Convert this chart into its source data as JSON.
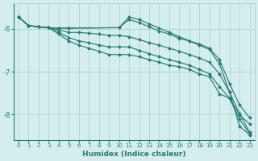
{
  "background_color": "#d4eeee",
  "grid_color": "#b0d4d4",
  "line_color": "#2a7a70",
  "xlabel": "Humidex (Indice chaleur)",
  "xlim": [
    -0.5,
    23.5
  ],
  "ylim": [
    -8.6,
    -5.4
  ],
  "yticks": [
    -8,
    -7,
    -6
  ],
  "xticks": [
    0,
    1,
    2,
    3,
    4,
    5,
    6,
    7,
    8,
    9,
    10,
    11,
    12,
    13,
    14,
    15,
    16,
    17,
    18,
    19,
    20,
    21,
    22,
    23
  ],
  "series": [
    {
      "x": [
        0,
        1,
        2,
        3,
        4,
        5,
        10,
        11,
        12,
        13,
        14,
        15,
        16,
        17,
        18,
        19,
        20,
        21,
        22,
        23
      ],
      "y": [
        -5.72,
        -5.92,
        -5.95,
        -5.97,
        -5.98,
        -5.98,
        -5.97,
        -5.78,
        -5.85,
        -5.95,
        -6.05,
        -6.12,
        -6.22,
        -6.28,
        -6.35,
        -6.45,
        -6.72,
        -7.28,
        -7.78,
        -8.08
      ]
    },
    {
      "x": [
        0,
        1,
        2,
        3,
        4,
        5,
        6,
        7,
        8,
        9,
        10,
        11,
        12,
        13,
        14,
        15,
        16,
        17,
        18,
        19,
        20,
        21,
        22,
        23
      ],
      "y": [
        -5.72,
        -5.92,
        -5.95,
        -5.97,
        -6.02,
        -6.08,
        -6.08,
        -6.1,
        -6.12,
        -6.15,
        -6.15,
        -6.18,
        -6.25,
        -6.32,
        -6.38,
        -6.45,
        -6.52,
        -6.6,
        -6.68,
        -6.78,
        -7.05,
        -7.48,
        -7.98,
        -8.42
      ]
    },
    {
      "x": [
        0,
        1,
        2,
        3,
        4,
        5,
        6,
        7,
        8,
        9,
        10,
        11,
        12,
        13,
        14,
        15,
        16,
        17,
        18,
        19,
        20,
        21,
        22,
        23
      ],
      "y": [
        -5.72,
        -5.92,
        -5.95,
        -5.97,
        -6.08,
        -6.2,
        -6.28,
        -6.32,
        -6.38,
        -6.42,
        -6.42,
        -6.42,
        -6.5,
        -6.58,
        -6.65,
        -6.72,
        -6.78,
        -6.85,
        -6.95,
        -7.05,
        -7.35,
        -7.62,
        -8.12,
        -8.45
      ]
    },
    {
      "x": [
        0,
        1,
        2,
        3,
        4,
        5,
        6,
        7,
        8,
        9,
        10,
        11,
        12,
        13,
        14,
        15,
        16,
        17,
        18,
        19,
        20,
        21,
        22,
        23
      ],
      "y": [
        -5.72,
        -5.92,
        -5.95,
        -5.97,
        -6.12,
        -6.28,
        -6.38,
        -6.45,
        -6.52,
        -6.6,
        -6.6,
        -6.6,
        -6.65,
        -6.72,
        -6.78,
        -6.85,
        -6.88,
        -6.95,
        -7.05,
        -7.12,
        -7.52,
        -7.62,
        -8.02,
        -8.22
      ]
    },
    {
      "x": [
        0,
        1,
        2,
        3,
        4,
        5,
        10,
        11,
        12,
        13,
        14,
        15,
        16,
        17,
        18,
        19,
        20,
        21,
        22,
        23
      ],
      "y": [
        -5.72,
        -5.92,
        -5.95,
        -5.97,
        -5.98,
        -5.98,
        -5.97,
        -5.72,
        -5.78,
        -5.88,
        -5.98,
        -6.08,
        -6.18,
        -6.28,
        -6.38,
        -6.48,
        -6.82,
        -7.48,
        -8.28,
        -8.48
      ]
    }
  ],
  "marker": "D",
  "marker_size": 2.0,
  "line_width": 0.85
}
